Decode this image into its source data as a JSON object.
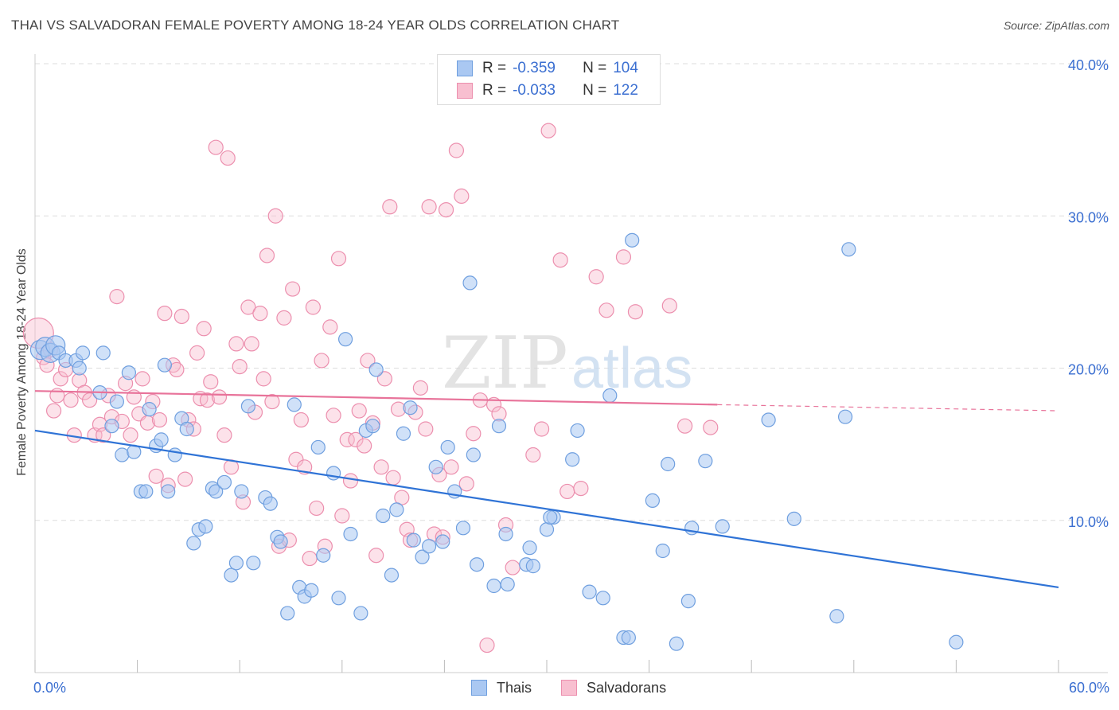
{
  "header": {
    "title": "THAI VS SALVADORAN FEMALE POVERTY AMONG 18-24 YEAR OLDS CORRELATION CHART",
    "source": "Source: ZipAtlas.com"
  },
  "colors": {
    "thai_fill": "#aac8f2",
    "thai_stroke": "#6f9fdf",
    "thai_line": "#2f73d6",
    "salv_fill": "#f8bfd0",
    "salv_stroke": "#ec8fae",
    "salv_line": "#e8739a",
    "value_text": "#3b6fd1",
    "grid": "#dddddd"
  },
  "legend": {
    "rows": [
      {
        "r_label": "R =",
        "r_value": "-0.359",
        "n_label": "N =",
        "n_value": "104"
      },
      {
        "r_label": "R =",
        "r_value": "-0.033",
        "n_label": "N =",
        "n_value": "122"
      }
    ]
  },
  "bottom_legend": {
    "thai": "Thais",
    "salv": "Salvadorans"
  },
  "watermark": {
    "zip": "ZIP",
    "atlas": "atlas"
  },
  "chart_data": {
    "type": "scatter",
    "ylabel": "Female Poverty Among 18-24 Year Olds",
    "xlim": [
      0,
      60
    ],
    "ylim": [
      0,
      40
    ],
    "x_tick_labels": [
      {
        "value": 0,
        "label": "0.0%"
      },
      {
        "value": 60,
        "label": "60.0%"
      }
    ],
    "y_tick_labels": [
      {
        "value": 10,
        "label": "10.0%"
      },
      {
        "value": 20,
        "label": "20.0%"
      },
      {
        "value": 30,
        "label": "30.0%"
      },
      {
        "value": 40,
        "label": "40.0%"
      }
    ],
    "grid": true,
    "legend_position": "top-center",
    "series": [
      {
        "name": "Thais",
        "r": -0.359,
        "n": 104,
        "trend": {
          "x": [
            0,
            60
          ],
          "y": [
            15.9,
            5.6
          ]
        },
        "points": [
          [
            0.3,
            21.2
          ],
          [
            0.6,
            21.4
          ],
          [
            0.9,
            21.0
          ],
          [
            1.2,
            21.5
          ],
          [
            1.4,
            21.0
          ],
          [
            1.8,
            20.5
          ],
          [
            2.4,
            20.5
          ],
          [
            2.6,
            20.0
          ],
          [
            2.8,
            21.0
          ],
          [
            4.0,
            21.0
          ],
          [
            3.8,
            18.4
          ],
          [
            4.5,
            16.2
          ],
          [
            4.8,
            17.8
          ],
          [
            5.1,
            14.3
          ],
          [
            5.5,
            19.7
          ],
          [
            5.8,
            14.5
          ],
          [
            6.2,
            11.9
          ],
          [
            6.5,
            11.9
          ],
          [
            6.7,
            17.3
          ],
          [
            7.1,
            14.9
          ],
          [
            7.4,
            15.3
          ],
          [
            7.6,
            20.2
          ],
          [
            7.8,
            11.9
          ],
          [
            8.2,
            14.3
          ],
          [
            8.6,
            16.7
          ],
          [
            8.9,
            16.0
          ],
          [
            9.3,
            8.5
          ],
          [
            9.6,
            9.4
          ],
          [
            10.0,
            9.6
          ],
          [
            10.4,
            12.1
          ],
          [
            10.6,
            11.9
          ],
          [
            11.1,
            12.5
          ],
          [
            11.5,
            6.4
          ],
          [
            11.8,
            7.2
          ],
          [
            12.1,
            11.9
          ],
          [
            12.5,
            17.5
          ],
          [
            12.8,
            7.2
          ],
          [
            13.5,
            11.5
          ],
          [
            13.8,
            11.1
          ],
          [
            14.2,
            8.9
          ],
          [
            14.4,
            8.6
          ],
          [
            14.8,
            3.9
          ],
          [
            15.2,
            17.6
          ],
          [
            15.5,
            5.6
          ],
          [
            15.8,
            5.0
          ],
          [
            16.2,
            5.4
          ],
          [
            16.6,
            14.8
          ],
          [
            16.9,
            7.7
          ],
          [
            17.5,
            13.1
          ],
          [
            17.8,
            4.9
          ],
          [
            18.2,
            21.9
          ],
          [
            18.5,
            9.1
          ],
          [
            19.1,
            3.9
          ],
          [
            19.4,
            15.9
          ],
          [
            19.8,
            16.2
          ],
          [
            20.0,
            19.9
          ],
          [
            20.4,
            10.3
          ],
          [
            20.9,
            6.4
          ],
          [
            21.2,
            10.7
          ],
          [
            21.6,
            15.7
          ],
          [
            22.0,
            17.4
          ],
          [
            22.2,
            8.7
          ],
          [
            22.7,
            7.6
          ],
          [
            23.1,
            8.3
          ],
          [
            23.5,
            13.5
          ],
          [
            23.9,
            8.6
          ],
          [
            24.2,
            14.8
          ],
          [
            24.6,
            11.9
          ],
          [
            25.1,
            9.5
          ],
          [
            25.5,
            25.6
          ],
          [
            25.7,
            14.3
          ],
          [
            25.9,
            7.1
          ],
          [
            26.9,
            5.7
          ],
          [
            27.2,
            16.2
          ],
          [
            27.6,
            9.1
          ],
          [
            27.7,
            5.8
          ],
          [
            28.8,
            7.1
          ],
          [
            29.0,
            8.2
          ],
          [
            29.2,
            7.0
          ],
          [
            30.4,
            10.2
          ],
          [
            30.0,
            9.4
          ],
          [
            30.2,
            10.2
          ],
          [
            31.5,
            14.0
          ],
          [
            31.8,
            15.9
          ],
          [
            32.5,
            5.3
          ],
          [
            33.3,
            4.9
          ],
          [
            33.7,
            18.2
          ],
          [
            34.5,
            2.3
          ],
          [
            34.8,
            2.3
          ],
          [
            35.0,
            28.4
          ],
          [
            36.2,
            11.3
          ],
          [
            36.8,
            8.0
          ],
          [
            37.1,
            13.7
          ],
          [
            37.6,
            1.9
          ],
          [
            38.3,
            4.7
          ],
          [
            38.5,
            9.5
          ],
          [
            39.3,
            13.9
          ],
          [
            40.3,
            9.6
          ],
          [
            43.0,
            16.6
          ],
          [
            44.5,
            10.1
          ],
          [
            47.0,
            3.7
          ],
          [
            47.5,
            16.8
          ],
          [
            47.7,
            27.8
          ],
          [
            54.0,
            2.0
          ]
        ]
      },
      {
        "name": "Salvadorans",
        "r": -0.033,
        "n": 122,
        "trend": {
          "x": [
            0,
            40
          ],
          "y": [
            18.5,
            17.6
          ],
          "dashed_to": {
            "x": 60,
            "y": 17.2
          }
        },
        "points": [
          [
            0.2,
            22.3
          ],
          [
            0.5,
            20.7
          ],
          [
            0.7,
            20.2
          ],
          [
            0.9,
            21.2
          ],
          [
            1.1,
            17.2
          ],
          [
            1.3,
            18.2
          ],
          [
            1.5,
            19.3
          ],
          [
            1.8,
            19.9
          ],
          [
            2.1,
            17.9
          ],
          [
            2.3,
            15.6
          ],
          [
            2.6,
            19.2
          ],
          [
            2.9,
            18.4
          ],
          [
            3.2,
            17.9
          ],
          [
            3.5,
            15.6
          ],
          [
            3.8,
            16.3
          ],
          [
            4.0,
            15.6
          ],
          [
            4.3,
            18.2
          ],
          [
            4.5,
            16.8
          ],
          [
            4.8,
            24.7
          ],
          [
            5.1,
            16.5
          ],
          [
            5.3,
            19.0
          ],
          [
            5.6,
            15.6
          ],
          [
            5.8,
            18.1
          ],
          [
            6.1,
            17.0
          ],
          [
            6.3,
            19.3
          ],
          [
            6.6,
            16.4
          ],
          [
            6.9,
            17.8
          ],
          [
            7.1,
            12.9
          ],
          [
            7.3,
            16.6
          ],
          [
            7.6,
            23.6
          ],
          [
            7.8,
            12.3
          ],
          [
            8.1,
            20.2
          ],
          [
            8.3,
            19.9
          ],
          [
            8.6,
            23.4
          ],
          [
            8.8,
            12.7
          ],
          [
            9.0,
            16.6
          ],
          [
            9.3,
            16.0
          ],
          [
            9.5,
            21.0
          ],
          [
            9.7,
            18.0
          ],
          [
            9.9,
            22.6
          ],
          [
            10.1,
            17.9
          ],
          [
            10.3,
            19.1
          ],
          [
            10.6,
            34.5
          ],
          [
            10.8,
            18.1
          ],
          [
            11.1,
            15.6
          ],
          [
            11.3,
            33.8
          ],
          [
            11.5,
            13.5
          ],
          [
            11.8,
            21.6
          ],
          [
            12.0,
            20.1
          ],
          [
            12.2,
            11.2
          ],
          [
            12.5,
            24.0
          ],
          [
            12.7,
            21.6
          ],
          [
            12.9,
            17.1
          ],
          [
            13.2,
            23.6
          ],
          [
            13.4,
            19.3
          ],
          [
            13.6,
            27.4
          ],
          [
            13.9,
            17.8
          ],
          [
            14.1,
            30.0
          ],
          [
            14.3,
            8.3
          ],
          [
            14.6,
            23.3
          ],
          [
            14.9,
            8.7
          ],
          [
            15.1,
            25.2
          ],
          [
            15.3,
            14.0
          ],
          [
            15.6,
            16.6
          ],
          [
            15.8,
            13.5
          ],
          [
            16.1,
            7.5
          ],
          [
            16.3,
            24.0
          ],
          [
            16.5,
            10.8
          ],
          [
            16.8,
            20.5
          ],
          [
            17.0,
            8.3
          ],
          [
            17.3,
            22.7
          ],
          [
            17.5,
            16.9
          ],
          [
            17.8,
            27.2
          ],
          [
            18.0,
            10.3
          ],
          [
            18.3,
            15.3
          ],
          [
            18.5,
            12.6
          ],
          [
            18.8,
            15.3
          ],
          [
            19.0,
            17.2
          ],
          [
            19.3,
            14.9
          ],
          [
            19.5,
            20.5
          ],
          [
            19.8,
            16.4
          ],
          [
            20.0,
            7.7
          ],
          [
            20.3,
            13.5
          ],
          [
            20.5,
            19.3
          ],
          [
            20.8,
            30.6
          ],
          [
            21.0,
            12.8
          ],
          [
            21.3,
            17.3
          ],
          [
            21.5,
            11.5
          ],
          [
            21.8,
            9.4
          ],
          [
            22.0,
            8.7
          ],
          [
            22.3,
            17.1
          ],
          [
            22.6,
            18.7
          ],
          [
            22.9,
            16.0
          ],
          [
            23.1,
            30.6
          ],
          [
            23.4,
            9.1
          ],
          [
            23.7,
            13.0
          ],
          [
            23.9,
            8.9
          ],
          [
            24.1,
            30.4
          ],
          [
            24.4,
            13.5
          ],
          [
            24.7,
            34.3
          ],
          [
            25.0,
            31.3
          ],
          [
            25.3,
            12.4
          ],
          [
            25.7,
            15.7
          ],
          [
            26.1,
            17.9
          ],
          [
            26.5,
            1.8
          ],
          [
            26.9,
            17.6
          ],
          [
            27.2,
            17.0
          ],
          [
            27.6,
            9.7
          ],
          [
            28.0,
            6.9
          ],
          [
            29.2,
            14.3
          ],
          [
            29.7,
            16.0
          ],
          [
            30.1,
            35.6
          ],
          [
            30.8,
            27.1
          ],
          [
            31.2,
            11.9
          ],
          [
            32.0,
            12.1
          ],
          [
            32.9,
            26.0
          ],
          [
            33.5,
            23.8
          ],
          [
            34.5,
            27.3
          ],
          [
            35.2,
            23.7
          ],
          [
            39.6,
            16.1
          ],
          [
            38.1,
            16.2
          ],
          [
            37.2,
            24.1
          ]
        ]
      }
    ]
  }
}
